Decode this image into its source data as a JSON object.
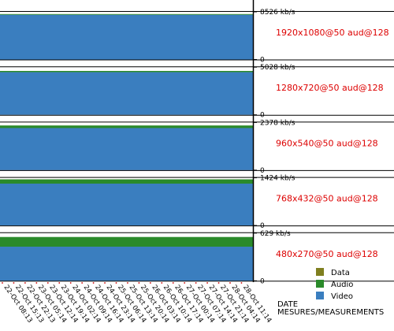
{
  "chart_data": {
    "type": "bar",
    "stacked": true,
    "colors": {
      "Data": "#7f7f1f",
      "Audio": "#2a8a2a",
      "Video": "#3a7ebf",
      "profile_label": "#dd0000"
    },
    "legend": {
      "placement": "bottom-right",
      "items": [
        {
          "name": "Data",
          "color": "#7f7f1f"
        },
        {
          "name": "Audio",
          "color": "#2a8a2a"
        },
        {
          "name": "Video",
          "color": "#3a7ebf"
        }
      ]
    },
    "axis_titles": [
      "DATE",
      "MESURES/MEASUREMENTS"
    ],
    "x_tick_labels": [
      "22-Oct 08:13",
      "22-Oct 15:13",
      "22-Oct 22:13",
      "23-Oct 05:14",
      "23-Oct 12:14",
      "23-Oct 19:14",
      "24-Oct 02:14",
      "24-Oct 09:14",
      "24-Oct 16:14",
      "24-Oct 23:14",
      "25-Oct 06:14",
      "25-Oct 13:14",
      "25-Oct 20:14",
      "26-Oct 03:14",
      "26-Oct 10:14",
      "26-Oct 17:14",
      "27-Oct 00:14",
      "27-Oct 07:14",
      "27-Oct 14:14",
      "27-Oct 21:14",
      "28-Oct 04:14",
      "28-Oct 11:14"
    ],
    "panels": [
      {
        "profile": "1920x1080@50 aud@128",
        "max_label": "8526 kb/s",
        "zero_label": "0",
        "ylim": [
          0,
          8526
        ],
        "video": 8000,
        "audio": 128,
        "data": 0
      },
      {
        "profile": "1280x720@50 aud@128",
        "max_label": "5028 kb/s",
        "zero_label": "0",
        "ylim": [
          0,
          5028
        ],
        "video": 4500,
        "audio": 128,
        "data": 0
      },
      {
        "profile": "960x540@50 aud@128",
        "max_label": "2378 kb/s",
        "zero_label": "0",
        "ylim": [
          0,
          2378
        ],
        "video": 2100,
        "audio": 128,
        "data": 0
      },
      {
        "profile": "768x432@50 aud@128",
        "max_label": "1424 kb/s",
        "zero_label": "0",
        "ylim": [
          0,
          1424
        ],
        "video": 1250,
        "audio": 128,
        "data": 0
      },
      {
        "profile": "480x270@50 aud@128",
        "max_label": "629 kb/s",
        "zero_label": "0",
        "ylim": [
          0,
          629
        ],
        "video": 450,
        "audio": 128,
        "data": 0
      }
    ]
  }
}
